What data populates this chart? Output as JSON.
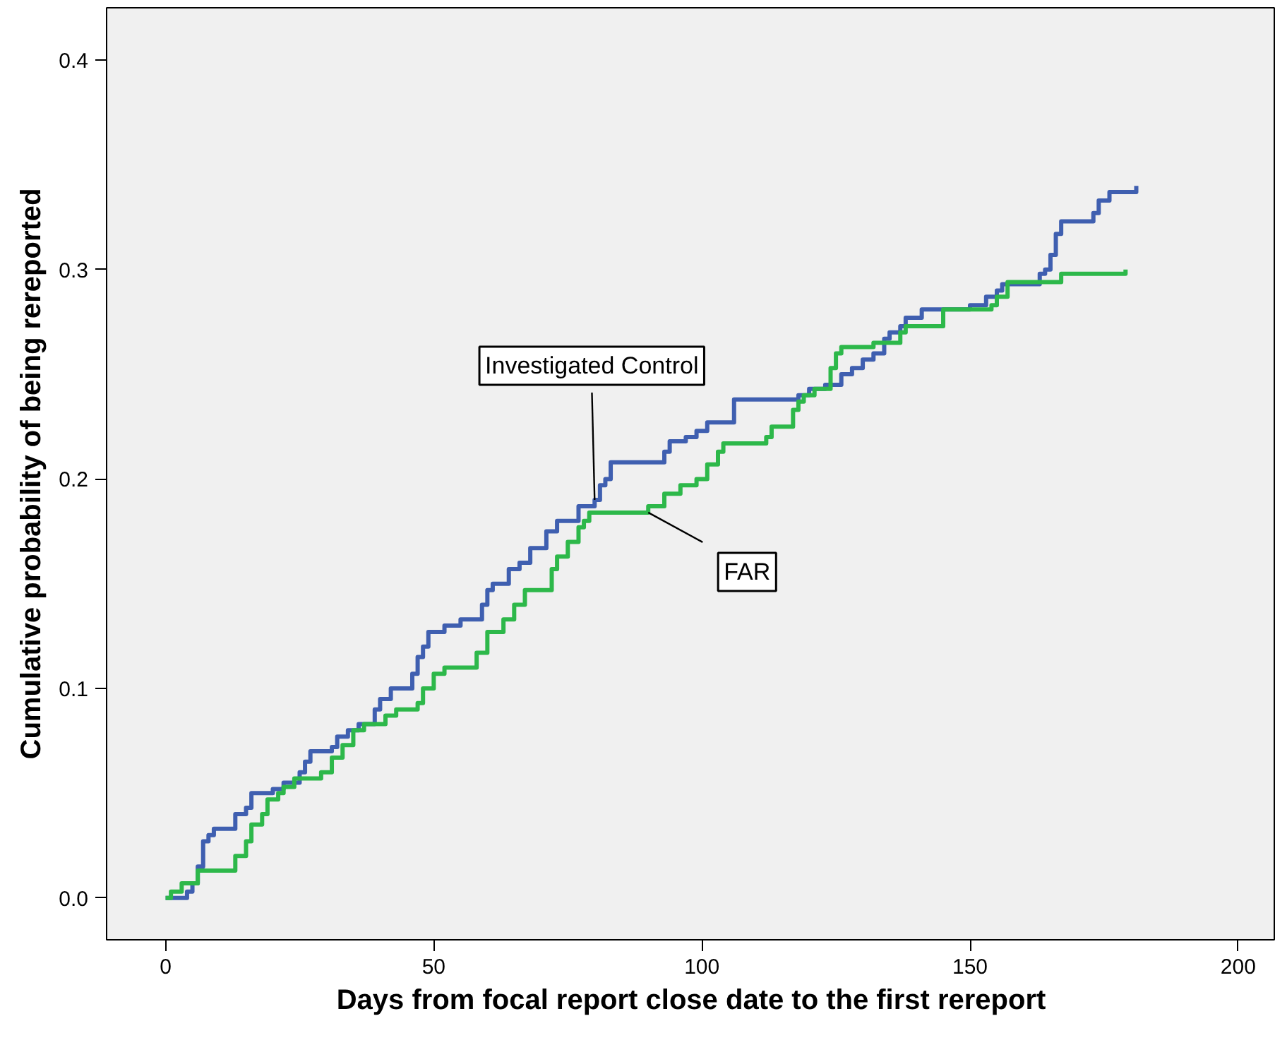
{
  "chart_data": {
    "type": "step",
    "xlabel": "Days from focal report close date to the first rereport",
    "ylabel": "Cumulative probability of being rereported",
    "xlim": [
      -11,
      207
    ],
    "ylim": [
      -0.02,
      0.425
    ],
    "xticks": [
      0,
      50,
      100,
      150,
      200
    ],
    "yticks": [
      {
        "value": 0,
        "label": "0.0"
      },
      {
        "value": 0.1,
        "label": "0.1"
      },
      {
        "value": 0.2,
        "label": "0.2"
      },
      {
        "value": 0.3,
        "label": "0.3"
      },
      {
        "value": 0.4,
        "label": "0.4"
      }
    ],
    "grid": false,
    "annotations": [
      {
        "text": "Investigated Control",
        "x": 80,
        "y": 0.19
      },
      {
        "text": "FAR",
        "x": 90,
        "y": 0.184
      }
    ],
    "series": [
      {
        "color": "#3f5fb0",
        "x": [
          0,
          4,
          5,
          6,
          7,
          8,
          9,
          13,
          15,
          16,
          20,
          22,
          25,
          26,
          27,
          31,
          32,
          34,
          36,
          39,
          40,
          42,
          46,
          47,
          48,
          49,
          52,
          55,
          59,
          60,
          61,
          64,
          66,
          68,
          71,
          73,
          77,
          80,
          81,
          82,
          83,
          93,
          94,
          97,
          99,
          101,
          106,
          118,
          120,
          123,
          126,
          128,
          130,
          132,
          134,
          135,
          137,
          138,
          141,
          150,
          153,
          155,
          156,
          163,
          164,
          165,
          166,
          167,
          173,
          174,
          176,
          181
        ],
        "values": [
          0,
          0.003,
          0.007,
          0.015,
          0.027,
          0.03,
          0.033,
          0.04,
          0.043,
          0.05,
          0.052,
          0.055,
          0.06,
          0.065,
          0.07,
          0.072,
          0.077,
          0.08,
          0.083,
          0.09,
          0.095,
          0.1,
          0.107,
          0.115,
          0.12,
          0.127,
          0.13,
          0.133,
          0.14,
          0.147,
          0.15,
          0.157,
          0.16,
          0.167,
          0.175,
          0.18,
          0.187,
          0.19,
          0.197,
          0.2,
          0.208,
          0.213,
          0.218,
          0.22,
          0.223,
          0.227,
          0.238,
          0.24,
          0.243,
          0.245,
          0.25,
          0.253,
          0.257,
          0.26,
          0.267,
          0.27,
          0.273,
          0.277,
          0.281,
          0.283,
          0.287,
          0.29,
          0.293,
          0.298,
          0.3,
          0.307,
          0.317,
          0.323,
          0.327,
          0.333,
          0.337,
          0.34
        ]
      },
      {
        "color": "#2db84a",
        "x": [
          0,
          1,
          3,
          6,
          13,
          15,
          16,
          18,
          19,
          21,
          22,
          24,
          29,
          31,
          33,
          35,
          37,
          41,
          43,
          47,
          48,
          50,
          52,
          58,
          60,
          63,
          65,
          67,
          72,
          73,
          75,
          77,
          78,
          79,
          90,
          93,
          96,
          99,
          101,
          103,
          104,
          112,
          113,
          117,
          118,
          119,
          121,
          124,
          125,
          126,
          132,
          137,
          138,
          145,
          154,
          155,
          157,
          167,
          179
        ],
        "values": [
          0,
          0.003,
          0.007,
          0.013,
          0.02,
          0.027,
          0.035,
          0.04,
          0.047,
          0.05,
          0.053,
          0.057,
          0.06,
          0.067,
          0.073,
          0.08,
          0.083,
          0.087,
          0.09,
          0.093,
          0.1,
          0.107,
          0.11,
          0.117,
          0.127,
          0.133,
          0.14,
          0.147,
          0.157,
          0.163,
          0.17,
          0.177,
          0.18,
          0.184,
          0.187,
          0.193,
          0.197,
          0.2,
          0.207,
          0.213,
          0.217,
          0.22,
          0.225,
          0.233,
          0.237,
          0.24,
          0.243,
          0.253,
          0.26,
          0.263,
          0.265,
          0.27,
          0.273,
          0.281,
          0.283,
          0.287,
          0.294,
          0.298,
          0.3
        ]
      }
    ]
  }
}
